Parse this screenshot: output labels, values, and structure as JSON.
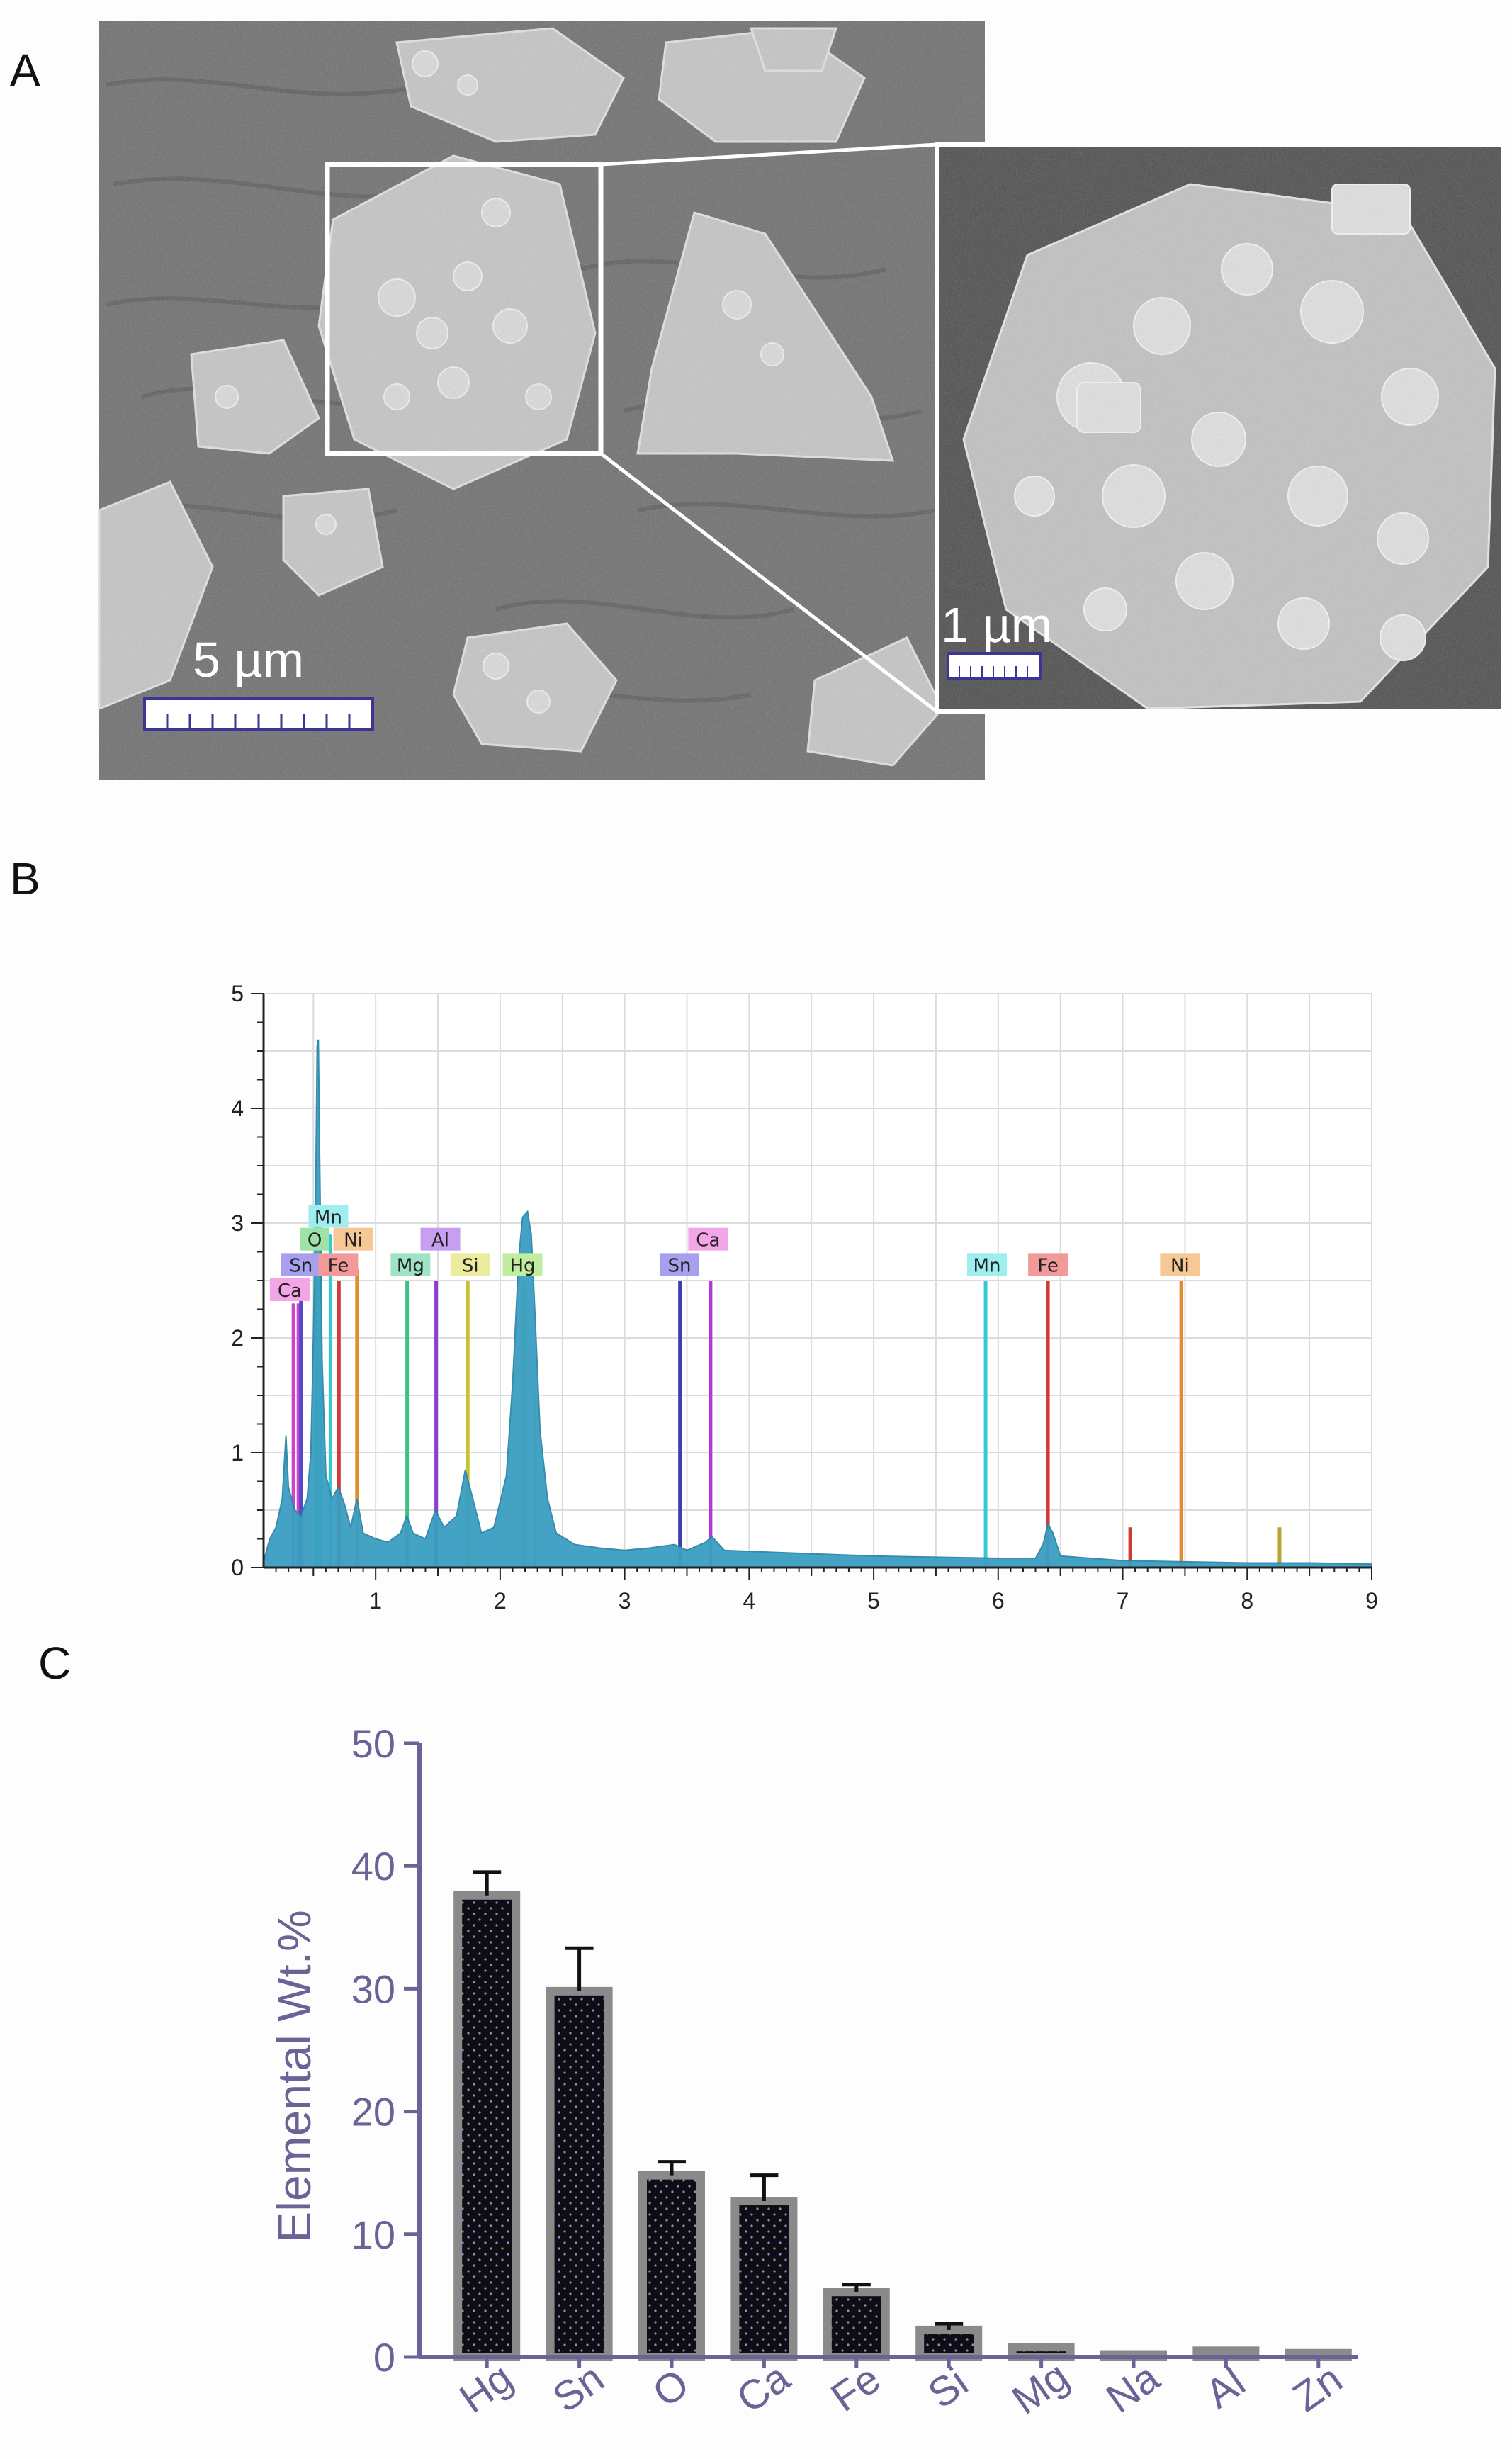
{
  "panels": {
    "a": "A",
    "b": "B",
    "c": "C"
  },
  "micrograph": {
    "scale_main": "5 µm",
    "scale_inset": "1 µm"
  },
  "chart_data": [
    {
      "type": "line",
      "panel": "B",
      "x_range": [
        0.1,
        9
      ],
      "ylim": [
        0,
        5
      ],
      "x_ticks": [
        1,
        2,
        3,
        4,
        5,
        6,
        7,
        8,
        9
      ],
      "y_ticks": [
        0,
        1,
        2,
        3,
        4,
        5
      ],
      "grid": true,
      "spectrum_color": "#3a9fc1",
      "spectrum": [
        [
          0.1,
          0.05
        ],
        [
          0.15,
          0.25
        ],
        [
          0.2,
          0.35
        ],
        [
          0.25,
          0.6
        ],
        [
          0.28,
          1.15
        ],
        [
          0.3,
          0.7
        ],
        [
          0.35,
          0.5
        ],
        [
          0.4,
          0.45
        ],
        [
          0.45,
          0.6
        ],
        [
          0.48,
          1.0
        ],
        [
          0.5,
          2.0
        ],
        [
          0.52,
          3.4
        ],
        [
          0.53,
          4.55
        ],
        [
          0.54,
          4.6
        ],
        [
          0.55,
          3.6
        ],
        [
          0.57,
          1.8
        ],
        [
          0.6,
          0.8
        ],
        [
          0.65,
          0.6
        ],
        [
          0.7,
          0.7
        ],
        [
          0.75,
          0.55
        ],
        [
          0.8,
          0.35
        ],
        [
          0.85,
          0.6
        ],
        [
          0.9,
          0.3
        ],
        [
          1.0,
          0.25
        ],
        [
          1.1,
          0.22
        ],
        [
          1.2,
          0.3
        ],
        [
          1.25,
          0.45
        ],
        [
          1.3,
          0.3
        ],
        [
          1.4,
          0.25
        ],
        [
          1.48,
          0.5
        ],
        [
          1.55,
          0.35
        ],
        [
          1.65,
          0.45
        ],
        [
          1.72,
          0.85
        ],
        [
          1.78,
          0.6
        ],
        [
          1.85,
          0.3
        ],
        [
          1.95,
          0.35
        ],
        [
          2.05,
          0.8
        ],
        [
          2.1,
          1.6
        ],
        [
          2.15,
          2.7
        ],
        [
          2.18,
          3.05
        ],
        [
          2.22,
          3.1
        ],
        [
          2.25,
          2.9
        ],
        [
          2.28,
          2.2
        ],
        [
          2.32,
          1.2
        ],
        [
          2.38,
          0.6
        ],
        [
          2.45,
          0.3
        ],
        [
          2.6,
          0.2
        ],
        [
          2.8,
          0.17
        ],
        [
          3.0,
          0.15
        ],
        [
          3.2,
          0.17
        ],
        [
          3.4,
          0.2
        ],
        [
          3.5,
          0.15
        ],
        [
          3.65,
          0.22
        ],
        [
          3.7,
          0.27
        ],
        [
          3.8,
          0.15
        ],
        [
          4.0,
          0.14
        ],
        [
          4.5,
          0.12
        ],
        [
          5.0,
          0.1
        ],
        [
          5.5,
          0.09
        ],
        [
          6.0,
          0.08
        ],
        [
          6.3,
          0.08
        ],
        [
          6.36,
          0.2
        ],
        [
          6.4,
          0.38
        ],
        [
          6.44,
          0.3
        ],
        [
          6.5,
          0.1
        ],
        [
          7.0,
          0.06
        ],
        [
          7.5,
          0.05
        ],
        [
          8.0,
          0.04
        ],
        [
          8.5,
          0.04
        ],
        [
          9.0,
          0.03
        ]
      ],
      "element_lines": [
        {
          "el": "Ca",
          "x": 0.34,
          "h": 2.3,
          "color": "#cc44cc"
        },
        {
          "el": "Ca",
          "x": 0.38,
          "h": 2.3,
          "color": "#cc44cc"
        },
        {
          "el": "Sn",
          "x": 0.4,
          "h": 2.5,
          "color": "#5548c8"
        },
        {
          "el": "O",
          "x": 0.525,
          "h": 2.7,
          "color": "#3ab84e"
        },
        {
          "el": "Mn",
          "x": 0.556,
          "h": 2.9,
          "color": "#35c9d4"
        },
        {
          "el": "Mn",
          "x": 0.637,
          "h": 2.9,
          "color": "#35c9d4"
        },
        {
          "el": "Fe",
          "x": 0.705,
          "h": 2.5,
          "color": "#d23a3a"
        },
        {
          "el": "Ni",
          "x": 0.85,
          "h": 2.6,
          "color": "#e58b2f"
        },
        {
          "el": "Mg",
          "x": 1.253,
          "h": 2.5,
          "color": "#3fbf8a"
        },
        {
          "el": "Al",
          "x": 1.486,
          "h": 2.5,
          "color": "#8c3fd6"
        },
        {
          "el": "Si",
          "x": 1.74,
          "h": 2.5,
          "color": "#c9c22c"
        },
        {
          "el": "Hg",
          "x": 2.195,
          "h": 2.5,
          "color": "#7ccf4a"
        },
        {
          "el": "Hg",
          "x": 2.28,
          "h": 1.5,
          "color": "#c9c22c"
        },
        {
          "el": "Sn",
          "x": 3.444,
          "h": 2.5,
          "color": "#3b3fb0"
        },
        {
          "el": "Ca",
          "x": 3.69,
          "h": 2.5,
          "color": "#b03ad6"
        },
        {
          "el": "Mn",
          "x": 5.899,
          "h": 2.5,
          "color": "#35c9d4"
        },
        {
          "el": "Fe",
          "x": 6.4,
          "h": 2.5,
          "color": "#d23a3a"
        },
        {
          "el": "Fe",
          "x": 7.06,
          "h": 0.35,
          "color": "#d23a3a"
        },
        {
          "el": "Ni",
          "x": 7.47,
          "h": 2.5,
          "color": "#e58b2f"
        },
        {
          "el": "Ni",
          "x": 8.26,
          "h": 0.35,
          "color": "#b8a230"
        }
      ],
      "element_tags": [
        {
          "label": "Ca",
          "x": 0.31,
          "y": 2.42,
          "color": "#f2a6e8"
        },
        {
          "label": "Sn",
          "x": 0.4,
          "y": 2.64,
          "color": "#a7a0ef"
        },
        {
          "label": "O",
          "x": 0.51,
          "y": 2.86,
          "color": "#9ee3a6"
        },
        {
          "label": "Mn",
          "x": 0.62,
          "y": 3.06,
          "color": "#9eeef0"
        },
        {
          "label": "Fe",
          "x": 0.7,
          "y": 2.64,
          "color": "#f29a9a"
        },
        {
          "label": "Ni",
          "x": 0.82,
          "y": 2.86,
          "color": "#f6c896"
        },
        {
          "label": "Mg",
          "x": 1.28,
          "y": 2.64,
          "color": "#9ee3c6"
        },
        {
          "label": "Al",
          "x": 1.52,
          "y": 2.86,
          "color": "#c79ef0"
        },
        {
          "label": "Si",
          "x": 1.76,
          "y": 2.64,
          "color": "#ecec9e"
        },
        {
          "label": "Hg",
          "x": 2.18,
          "y": 2.64,
          "color": "#c1ee9e"
        },
        {
          "label": "Sn",
          "x": 3.44,
          "y": 2.64,
          "color": "#a7a0ef"
        },
        {
          "label": "Ca",
          "x": 3.67,
          "y": 2.86,
          "color": "#f2a6e8"
        },
        {
          "label": "Mn",
          "x": 5.91,
          "y": 2.64,
          "color": "#9eeef0"
        },
        {
          "label": "Fe",
          "x": 6.4,
          "y": 2.64,
          "color": "#f29a9a"
        },
        {
          "label": "Ni",
          "x": 7.46,
          "y": 2.64,
          "color": "#f6c896"
        }
      ]
    },
    {
      "type": "bar",
      "panel": "C",
      "categories": [
        "Hg",
        "Sn",
        "O",
        "Ca",
        "Fe",
        "Si",
        "Mg",
        "Na",
        "Al",
        "Zn"
      ],
      "values": [
        37.6,
        29.8,
        14.8,
        12.7,
        5.3,
        2.2,
        0.8,
        0.2,
        0.5,
        0.3
      ],
      "errors": [
        1.9,
        3.5,
        1.1,
        2.1,
        0.6,
        0.5,
        0,
        0,
        0,
        0
      ],
      "ylabel": "Elemental Wt.%",
      "xlabel": "",
      "ylim": [
        0,
        50
      ],
      "y_ticks": [
        0,
        10,
        20,
        30,
        40,
        50
      ],
      "axis_color": "#6a6496",
      "bar_fill": "#111111",
      "bar_edge": "#8a8a8a"
    }
  ]
}
